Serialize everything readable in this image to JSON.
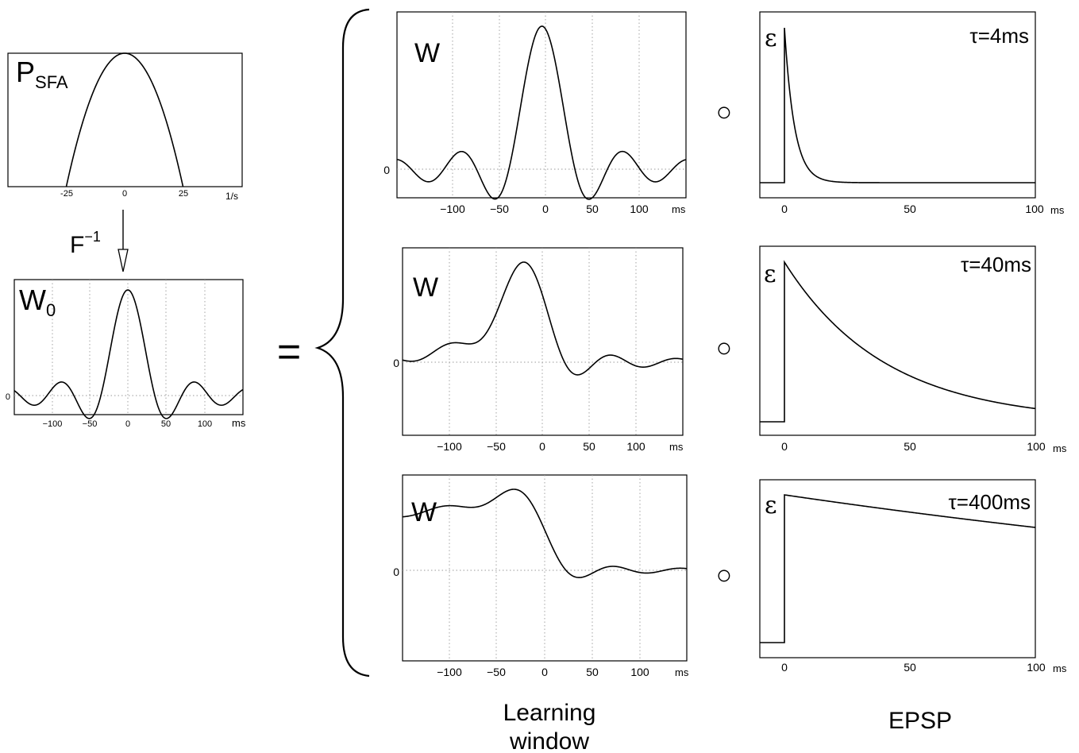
{
  "psfa": {
    "label_main": "P",
    "label_sub": "SFA",
    "x_ticks": [
      "-25",
      "0",
      "25"
    ],
    "x_unit": "1/s"
  },
  "transform": {
    "label_main": "F",
    "label_sup": "−1"
  },
  "w0": {
    "label_main": "W",
    "label_sub": "0",
    "y_tick": "0",
    "x_ticks": [
      "−100",
      "−50",
      "0",
      "50",
      "100"
    ],
    "x_unit": "ms"
  },
  "equals": "=",
  "windows": [
    {
      "label": "W",
      "y_tick": "0",
      "x_ticks": [
        "−100",
        "−50",
        "0",
        "50",
        "100"
      ],
      "x_unit": "ms"
    },
    {
      "label": "W",
      "y_tick": "0",
      "x_ticks": [
        "−100",
        "−50",
        "0",
        "50",
        "100"
      ],
      "x_unit": "ms"
    },
    {
      "label": "W",
      "y_tick": "0",
      "x_ticks": [
        "−100",
        "−50",
        "0",
        "50",
        "100"
      ],
      "x_unit": "ms"
    }
  ],
  "epsps": [
    {
      "label": "ε",
      "tau": "τ=4ms",
      "x_ticks": [
        "0",
        "50",
        "100"
      ],
      "x_unit": "ms",
      "tau_ms": 4
    },
    {
      "label": "ε",
      "tau": "τ=40ms",
      "x_ticks": [
        "0",
        "50",
        "100"
      ],
      "x_unit": "ms",
      "tau_ms": 40
    },
    {
      "label": "ε",
      "tau": "τ=400ms",
      "x_ticks": [
        "0",
        "50",
        "100"
      ],
      "x_unit": "ms",
      "tau_ms": 400
    }
  ],
  "convolution_symbol": "○",
  "captions": {
    "learning_line1": "Learning",
    "learning_line2": "window",
    "epsp": "EPSP"
  }
}
